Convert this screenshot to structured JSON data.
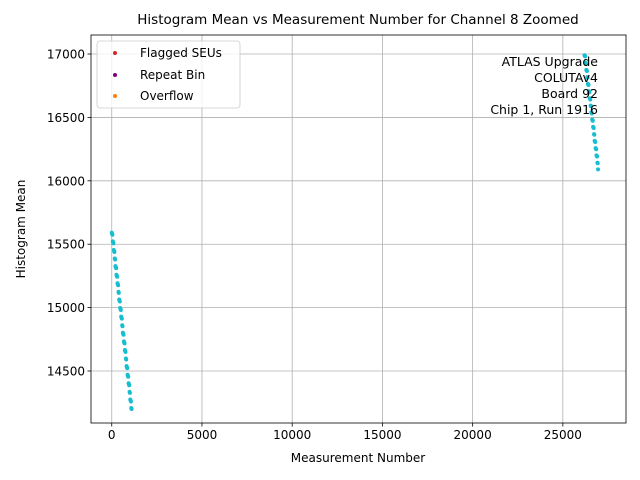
{
  "chart_data": {
    "type": "scatter",
    "title": "Histogram Mean vs Measurement Number for Channel 8 Zoomed",
    "xlabel": "Measurement Number",
    "ylabel": "Histogram Mean",
    "xlim": [
      -1150,
      28500
    ],
    "ylim": [
      14090,
      17150
    ],
    "x_ticks": [
      0,
      5000,
      10000,
      15000,
      20000,
      25000
    ],
    "y_ticks": [
      14500,
      15000,
      15500,
      16000,
      16500,
      17000
    ],
    "x_tick_labels": [
      "0",
      "5000",
      "10000",
      "15000",
      "20000",
      "25000"
    ],
    "y_tick_labels": [
      "14500",
      "15000",
      "15500",
      "16000",
      "16500",
      "17000"
    ],
    "grid": true,
    "legend_position": "top-left",
    "legend": [
      {
        "label": "Flagged SEUs",
        "color": "#d62728"
      },
      {
        "label": "Repeat Bin",
        "color": "#800080"
      },
      {
        "label": "Overflow",
        "color": "#ff7f0e"
      }
    ],
    "annotation": [
      "ATLAS Upgrade",
      "COLUTAv4",
      "Board 92",
      "Chip 1, Run 1916"
    ],
    "point_color": "#17becf",
    "segments": [
      {
        "x_start": 0,
        "x_end": 1100,
        "y_start": 15610,
        "y_end": 14200,
        "n": 60
      },
      {
        "x_start": 26200,
        "x_end": 26950,
        "y_start": 17010,
        "y_end": 16110,
        "n": 45
      }
    ]
  }
}
